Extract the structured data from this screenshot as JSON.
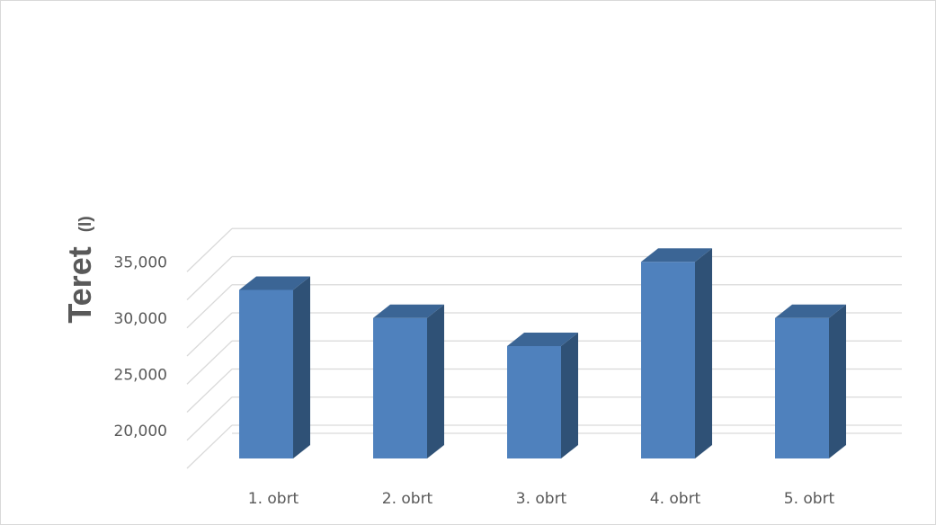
{
  "chart_data": {
    "type": "bar",
    "style": "3d-column",
    "categories": [
      "1. obrt",
      "2. obrt",
      "3. obrt",
      "4. obrt",
      "5. obrt"
    ],
    "values": [
      32500,
      30000,
      27500,
      35000,
      30000
    ],
    "ylabel": "Teret",
    "ylabel_unit": "(l)",
    "ylim": [
      17500,
      36250
    ],
    "yticks": [
      20000,
      25000,
      30000,
      35000
    ],
    "ytick_labels": [
      "20,000",
      "25,000",
      "30,000",
      "35,000"
    ],
    "grid": true,
    "colors": {
      "bar_front": "#4f81bd",
      "bar_side": "#2f5176",
      "bar_top": "#3b6595",
      "grid": "#d9d9d9",
      "text": "#595959"
    }
  }
}
